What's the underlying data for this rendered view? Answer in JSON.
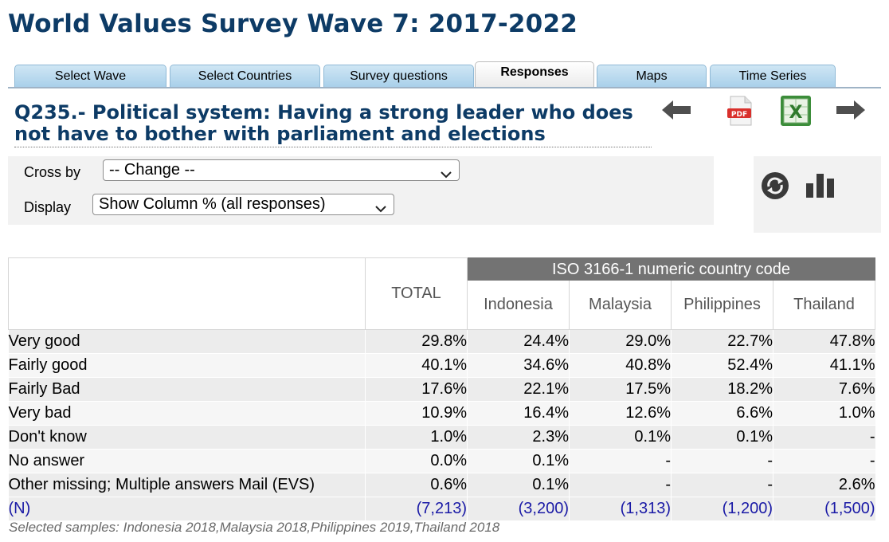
{
  "page": {
    "title": "World Values Survey Wave 7: 2017-2022"
  },
  "tabs": [
    {
      "label": "Select Wave",
      "active": false
    },
    {
      "label": "Select Countries",
      "active": false
    },
    {
      "label": "Survey questions",
      "active": false
    },
    {
      "label": "Responses",
      "active": true
    },
    {
      "label": "Maps",
      "active": false
    },
    {
      "label": "Time Series",
      "active": false
    }
  ],
  "question": {
    "text": "Q235.- Political system: Having a strong leader who does not have to bother with parliament and elections"
  },
  "toolbar": {
    "prev_icon": "arrow-left-icon",
    "pdf_icon": "pdf-icon",
    "excel_icon": "excel-icon",
    "next_icon": "arrow-right-icon",
    "refresh_icon": "refresh-icon",
    "chart_icon": "bar-chart-icon",
    "pdf_label": "PDF",
    "excel_label": "X"
  },
  "controls": {
    "cross_by_label": "Cross by",
    "cross_by_value": "-- Change --",
    "display_label": "Display",
    "display_value": "Show Column % (all responses)"
  },
  "table": {
    "total_header": "TOTAL",
    "group_header": "ISO 3166-1 numeric country code",
    "countries": [
      "Indonesia",
      "Malaysia",
      "Philippines",
      "Thailand"
    ],
    "rows": [
      {
        "label": "Very good",
        "values": [
          "29.8%",
          "24.4%",
          "29.0%",
          "22.7%",
          "47.8%"
        ]
      },
      {
        "label": "Fairly good",
        "values": [
          "40.1%",
          "34.6%",
          "40.8%",
          "52.4%",
          "41.1%"
        ]
      },
      {
        "label": "Fairly Bad",
        "values": [
          "17.6%",
          "22.1%",
          "17.5%",
          "18.2%",
          "7.6%"
        ]
      },
      {
        "label": "Very bad",
        "values": [
          "10.9%",
          "16.4%",
          "12.6%",
          "6.6%",
          "1.0%"
        ]
      },
      {
        "label": "Don't know",
        "values": [
          "1.0%",
          "2.3%",
          "0.1%",
          "0.1%",
          "-"
        ]
      },
      {
        "label": "No answer",
        "values": [
          "0.0%",
          "0.1%",
          "-",
          "-",
          "-"
        ]
      },
      {
        "label": "Other missing; Multiple answers Mail (EVS)",
        "values": [
          "0.6%",
          "0.1%",
          "-",
          "-",
          "2.6%"
        ]
      }
    ],
    "n_row": {
      "label": "(N)",
      "values": [
        "(7,213)",
        "(3,200)",
        "(1,313)",
        "(1,200)",
        "(1,500)"
      ]
    }
  },
  "footnote": "Selected samples: Indonesia 2018,Malaysia 2018,Philippines 2019,Thailand 2018"
}
